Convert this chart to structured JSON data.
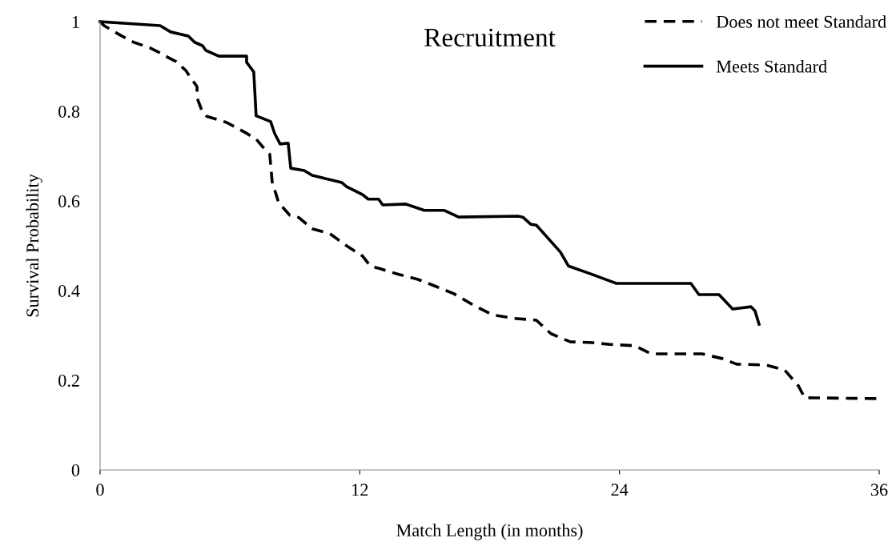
{
  "chart_data": {
    "type": "line",
    "title": "Recruitment",
    "xlabel": "Match Length (in months)",
    "ylabel": "Survival Probability",
    "xlim": [
      0,
      36
    ],
    "xticks": [
      0,
      12,
      24,
      36
    ],
    "ylim": [
      0,
      1
    ],
    "yticks": [
      0,
      0.2,
      0.4,
      0.6,
      0.8,
      1
    ],
    "grid": false,
    "legend": "top right",
    "marker": "none",
    "series": [
      {
        "name": "Does not meet Standard",
        "color": "#000000",
        "line_style": "dashed",
        "x": [
          0,
          0.18,
          1.0,
          1.55,
          2.33,
          2.7,
          3.22,
          3.51,
          3.96,
          4.18,
          4.48,
          4.48,
          4.7,
          4.92,
          5.85,
          6.73,
          7.21,
          7.51,
          7.84,
          7.95,
          8.25,
          8.77,
          9.18,
          9.8,
          10.62,
          11.39,
          12.13,
          12.5,
          12.87,
          13.8,
          14.69,
          15.54,
          16.35,
          17.31,
          18.13,
          19.13,
          20.16,
          20.83,
          21.72,
          22.75,
          23.57,
          24.71,
          25.45,
          27.82,
          28.78,
          29.41,
          30.78,
          31.63,
          32.26,
          32.56,
          36
        ],
        "values": [
          1.0,
          0.991,
          0.968,
          0.954,
          0.941,
          0.932,
          0.918,
          0.911,
          0.891,
          0.875,
          0.855,
          0.83,
          0.802,
          0.789,
          0.775,
          0.752,
          0.738,
          0.721,
          0.704,
          0.643,
          0.596,
          0.568,
          0.563,
          0.538,
          0.527,
          0.5,
          0.477,
          0.454,
          0.45,
          0.436,
          0.425,
          0.409,
          0.393,
          0.366,
          0.346,
          0.338,
          0.334,
          0.304,
          0.286,
          0.284,
          0.28,
          0.277,
          0.259,
          0.259,
          0.248,
          0.236,
          0.234,
          0.223,
          0.188,
          0.161,
          0.159
        ]
      },
      {
        "name": "Meets Standard",
        "color": "#000000",
        "line_style": "solid",
        "x": [
          0,
          2.77,
          3.26,
          4.07,
          4.37,
          4.74,
          4.88,
          5.48,
          6.77,
          6.77,
          7.1,
          7.21,
          7.88,
          8.07,
          8.32,
          8.69,
          8.81,
          9.43,
          9.8,
          11.17,
          11.39,
          12.13,
          12.39,
          12.87,
          13.06,
          14.13,
          14.98,
          15.91,
          16.57,
          19.31,
          19.53,
          19.9,
          20.16,
          21.27,
          21.64,
          22.75,
          23.86,
          27.3,
          27.67,
          28.6,
          29.23,
          30.08,
          30.26,
          30.45
        ],
        "values": [
          1.0,
          0.991,
          0.977,
          0.968,
          0.954,
          0.946,
          0.936,
          0.923,
          0.923,
          0.909,
          0.888,
          0.79,
          0.777,
          0.75,
          0.727,
          0.729,
          0.673,
          0.668,
          0.657,
          0.641,
          0.632,
          0.614,
          0.604,
          0.604,
          0.591,
          0.593,
          0.579,
          0.579,
          0.564,
          0.566,
          0.564,
          0.548,
          0.546,
          0.486,
          0.455,
          0.436,
          0.416,
          0.416,
          0.391,
          0.391,
          0.359,
          0.364,
          0.355,
          0.325
        ]
      }
    ]
  }
}
